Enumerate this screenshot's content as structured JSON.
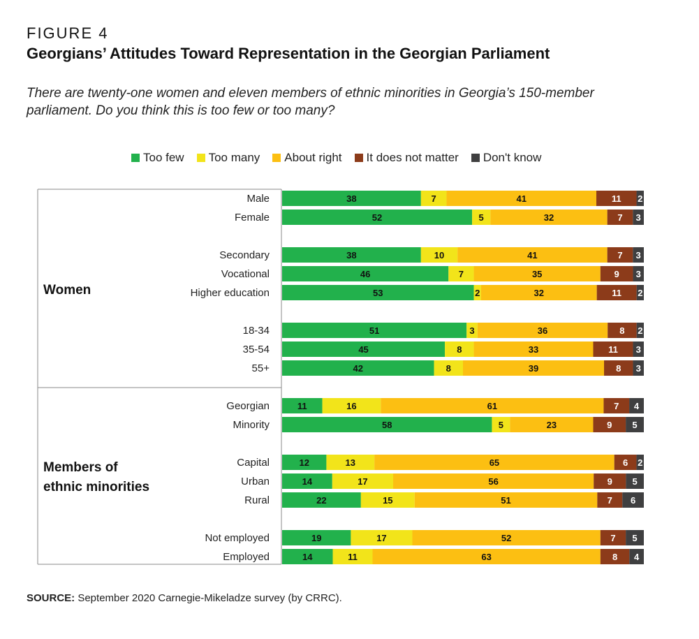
{
  "figure_label": "FIGURE 4",
  "title": "Georgians’ Attitudes Toward Representation in the Georgian Parliament",
  "subtitle": "There are twenty-one women and eleven members of ethnic minorities in Georgia’s 150-member parliament. Do you think this is too few or too many?",
  "source_label": "SOURCE:",
  "source_text": " September 2020 Carnegie-Mikeladze survey (by CRRC).",
  "colors": {
    "Too few": "#22b14c",
    "Too many": "#f2e41a",
    "About right": "#fcbf12",
    "It does not matter": "#8c3b1a",
    "Don't know": "#3f3f40"
  },
  "chart_data": {
    "type": "bar",
    "orientation": "horizontal",
    "stacked": true,
    "title": "Georgians’ Attitudes Toward Representation in the Georgian Parliament",
    "xlabel": "",
    "ylabel": "",
    "xlim": [
      0,
      100
    ],
    "legend_position": "top",
    "legend": [
      "Too few",
      "Too many",
      "About right",
      "It does not matter",
      "Don't know"
    ],
    "groups": [
      {
        "name": "Women",
        "categories": [
          "Male",
          "Female",
          "Secondary",
          "Vocational",
          "Higher education",
          "18-34",
          "35-54",
          "55+"
        ]
      },
      {
        "name": "Members of ethnic minorities",
        "categories": [
          "Georgian",
          "Minority",
          "Capital",
          "Urban",
          "Rural",
          "Not employed",
          "Employed"
        ]
      }
    ],
    "categories": [
      "Male",
      "Female",
      "Secondary",
      "Vocational",
      "Higher education",
      "18-34",
      "35-54",
      "55+",
      "Georgian",
      "Minority",
      "Capital",
      "Urban",
      "Rural",
      "Not employed",
      "Employed"
    ],
    "subgroups": [
      [
        0,
        1
      ],
      [
        2,
        3,
        4
      ],
      [
        5,
        6,
        7
      ],
      [
        8,
        9
      ],
      [
        10,
        11,
        12
      ],
      [
        13,
        14
      ]
    ],
    "series": [
      {
        "name": "Too few",
        "values": [
          38,
          52,
          38,
          46,
          53,
          51,
          45,
          42,
          11,
          58,
          12,
          14,
          22,
          19,
          14
        ]
      },
      {
        "name": "Too many",
        "values": [
          7,
          5,
          10,
          7,
          2,
          3,
          8,
          8,
          16,
          5,
          13,
          17,
          15,
          17,
          11
        ]
      },
      {
        "name": "About right",
        "values": [
          41,
          32,
          41,
          35,
          32,
          36,
          33,
          39,
          61,
          23,
          65,
          56,
          51,
          52,
          63
        ]
      },
      {
        "name": "It does not matter",
        "values": [
          11,
          7,
          7,
          9,
          11,
          8,
          11,
          8,
          7,
          9,
          6,
          9,
          7,
          7,
          8
        ]
      },
      {
        "name": "Don't know",
        "values": [
          2,
          3,
          3,
          3,
          2,
          2,
          3,
          3,
          4,
          5,
          2,
          5,
          6,
          5,
          4
        ]
      }
    ]
  }
}
